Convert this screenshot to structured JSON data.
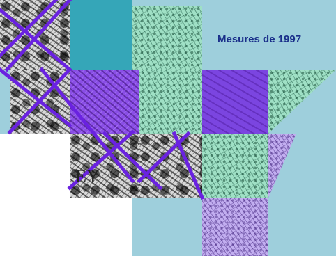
{
  "title": "Mesures de 1997",
  "map_label_fragment": "EY",
  "colors": {
    "background_blue": "#9ecfdc",
    "background_teal": "#35a6b8",
    "route_line": "#6a22e0",
    "title_text": "#1a2f8a",
    "tile_green": "#9fe0c5",
    "tile_violet": "#8a4ee6",
    "tile_lilac": "#c2aef0",
    "tile_grey": "#d9d9d9"
  }
}
